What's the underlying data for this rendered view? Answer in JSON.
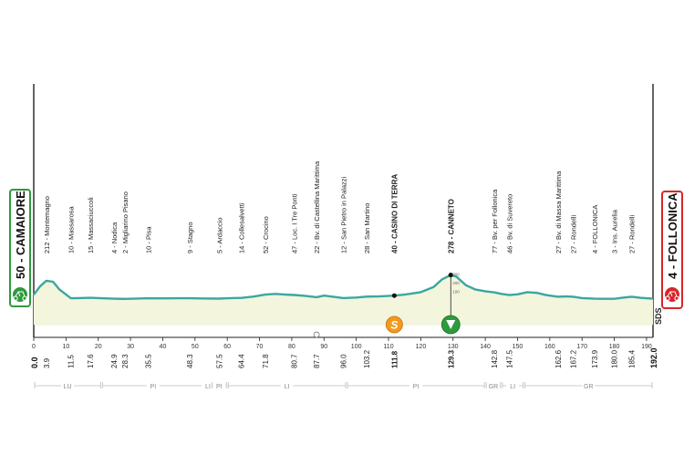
{
  "start": {
    "label": "50 - CAMAIORE",
    "km": "0.0",
    "color": "#2e9a3e"
  },
  "finish": {
    "label": "4 - FOLLONICA",
    "km": "192.0",
    "color": "#d8262b"
  },
  "logo": "SDS",
  "colors": {
    "profile_fill": "#f3f5dc",
    "profile_line": "#3aa7a0",
    "sprint": "#f39a1e",
    "kom": "#2e9a3e"
  },
  "places": [
    {
      "name": "212 - Montemagno",
      "km": 3.9,
      "km_label": "3.9",
      "alt": 212
    },
    {
      "name": "10 - Massarosa",
      "km": 11.5,
      "km_label": "11.5",
      "alt": 10
    },
    {
      "name": "15 - Massaciuccoli",
      "km": 17.6,
      "km_label": "17.6",
      "alt": 15
    },
    {
      "name": "4 - Nodica",
      "km": 24.9,
      "km_label": "24.9",
      "alt": 4
    },
    {
      "name": "2 - Migliarino Pisano",
      "km": 28.3,
      "km_label": "28.3",
      "alt": 2
    },
    {
      "name": "10 - Pisa",
      "km": 35.5,
      "km_label": "35.5",
      "alt": 10
    },
    {
      "name": "9 - Stagno",
      "km": 48.3,
      "km_label": "48.3",
      "alt": 9
    },
    {
      "name": "5 - Ardaccio",
      "km": 57.5,
      "km_label": "57.5",
      "alt": 5
    },
    {
      "name": "14 - Collesalvetti",
      "km": 64.4,
      "km_label": "64.4",
      "alt": 14
    },
    {
      "name": "52 - Crocino",
      "km": 71.8,
      "km_label": "71.8",
      "alt": 52
    },
    {
      "name": "47 - Loc. I Tre Ponti",
      "km": 80.7,
      "km_label": "80.7",
      "alt": 47
    },
    {
      "name": "22 - Bv. di Castellina Marittima",
      "km": 87.7,
      "km_label": "87.7",
      "alt": 22
    },
    {
      "name": "12 - San Pietro in Palazzi",
      "km": 96.0,
      "km_label": "96.0",
      "alt": 12
    },
    {
      "name": "28 - San Martino",
      "km": 103.2,
      "km_label": "103.2",
      "alt": 28
    },
    {
      "name": "40 - CASINO DI TERRA",
      "km": 111.8,
      "km_label": "111.8",
      "alt": 40,
      "bold": true
    },
    {
      "name": "278 - CANNETO",
      "km": 129.3,
      "km_label": "129.3",
      "alt": 278,
      "bold": true
    },
    {
      "name": "77 - Bv. per Follonica",
      "km": 142.8,
      "km_label": "142.8",
      "alt": 77
    },
    {
      "name": "46 - Bv. di Suvereto",
      "km": 147.5,
      "km_label": "147.5",
      "alt": 46
    },
    {
      "name": "27 - Bv. di Massa Marittima",
      "km": 162.6,
      "km_label": "162.6",
      "alt": 27
    },
    {
      "name": "27 - Rondelli",
      "km": 167.2,
      "km_label": "167.2",
      "alt": 27
    },
    {
      "name": "4 - FOLLONICA",
      "km": 173.9,
      "km_label": "173.9",
      "alt": 4
    },
    {
      "name": "3 - Ins. Aurelia",
      "km": 180.0,
      "km_label": "180.0",
      "alt": 3
    },
    {
      "name": "27 - Rondelli",
      "km": 185.4,
      "km_label": "185.4",
      "alt": 27
    }
  ],
  "axis_ticks": [
    "0",
    "10",
    "20",
    "30",
    "40",
    "50",
    "60",
    "70",
    "80",
    "90",
    "100",
    "110",
    "120",
    "130",
    "140",
    "150",
    "160",
    "170",
    "180",
    "190"
  ],
  "alt_scale": [
    "100",
    "200",
    "300"
  ],
  "provinces": [
    {
      "name": "LU",
      "from": 0,
      "to": 21
    },
    {
      "name": "PI",
      "from": 21,
      "to": 53
    },
    {
      "name": "LI",
      "from": 53,
      "to": 55
    },
    {
      "name": "PI",
      "from": 55,
      "to": 60
    },
    {
      "name": "LI",
      "from": 60,
      "to": 97
    },
    {
      "name": "PI",
      "from": 97,
      "to": 140
    },
    {
      "name": "GR",
      "from": 140,
      "to": 145
    },
    {
      "name": "LI",
      "from": 145,
      "to": 152
    },
    {
      "name": "GR",
      "from": 152,
      "to": 192
    }
  ],
  "chart_data": {
    "type": "area",
    "xlabel": "",
    "ylabel": "",
    "x_unit": "km",
    "xlim": [
      0,
      192
    ],
    "ylim": [
      0,
      300
    ],
    "x": [
      0,
      2,
      3.9,
      6,
      8,
      11.5,
      14,
      17.6,
      21,
      24.9,
      28.3,
      32,
      35.5,
      40,
      45,
      48.3,
      52,
      57.5,
      60,
      64.4,
      68,
      71.8,
      75,
      78,
      80.7,
      84,
      87.7,
      90,
      92,
      96,
      100,
      103.2,
      107,
      111.8,
      115,
      120,
      124,
      126.5,
      129.3,
      131,
      134,
      137,
      140,
      142.8,
      145,
      147.5,
      150,
      153,
      156,
      159,
      162.6,
      165,
      167.2,
      170,
      173.9,
      177,
      180,
      183,
      185.4,
      188,
      192
    ],
    "y": [
      50,
      150,
      212,
      200,
      110,
      10,
      12,
      15,
      10,
      4,
      2,
      6,
      10,
      8,
      9,
      9,
      7,
      5,
      9,
      14,
      28,
      52,
      60,
      52,
      47,
      38,
      22,
      40,
      30,
      12,
      18,
      28,
      30,
      40,
      52,
      80,
      140,
      225,
      278,
      260,
      160,
      110,
      90,
      77,
      60,
      46,
      55,
      80,
      72,
      45,
      27,
      30,
      27,
      12,
      4,
      3,
      3,
      18,
      27,
      15,
      4
    ],
    "sprint_km": 111.8,
    "kom_km": 129.3,
    "feed_km": 87.7
  }
}
